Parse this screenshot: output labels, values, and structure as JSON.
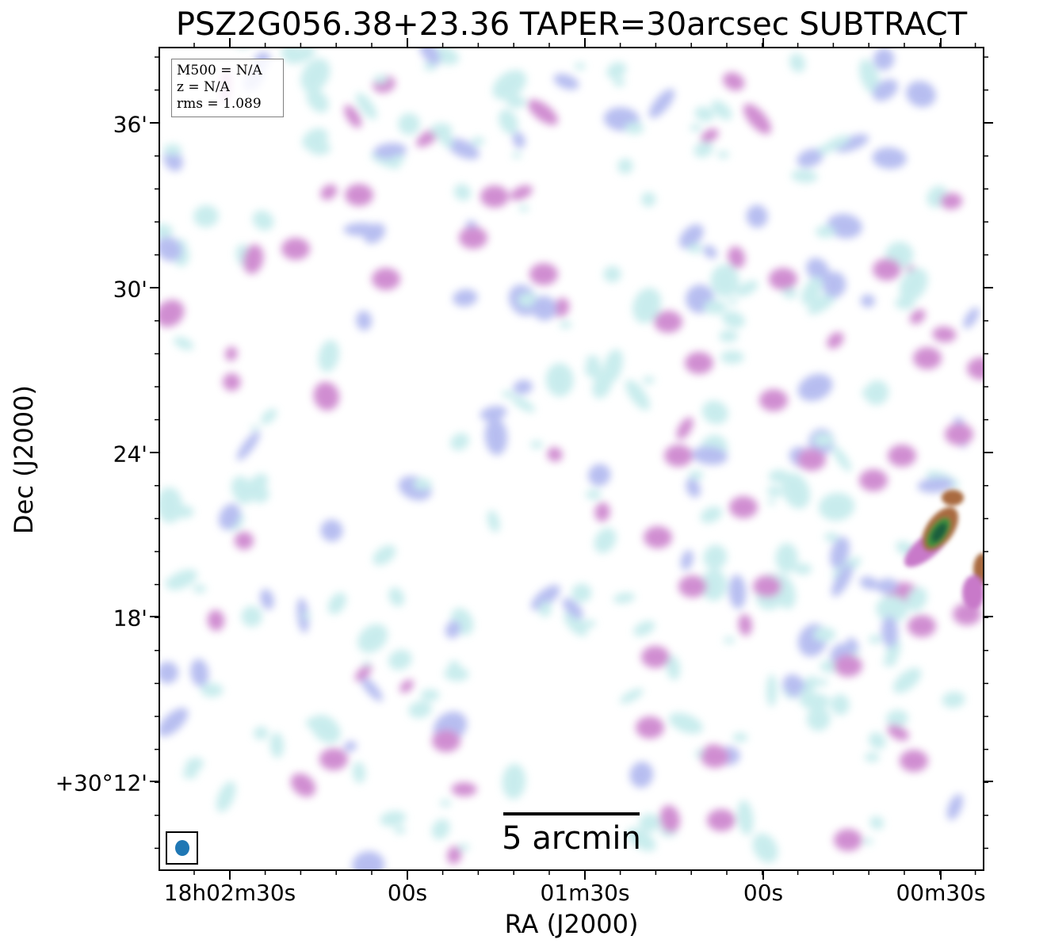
{
  "title": "PSZ2G056.38+23.36 TAPER=30arcsec SUBTRACT",
  "xaxis": {
    "label": "RA (J2000)",
    "ticks": [
      "18h02m30s",
      "00s",
      "01m30s",
      "00s",
      "00m30s"
    ]
  },
  "yaxis": {
    "label": "Dec (J2000)",
    "ticks": [
      "36'",
      "30'",
      "24'",
      "18'",
      "+30°12'"
    ]
  },
  "info": {
    "mass": "M500 = N/A",
    "redshift": "z = N/A",
    "rms": "rms = 1.089"
  },
  "scalebar": {
    "label": "5 arcmin"
  },
  "colors": {
    "faint": "#bfe9ea",
    "low": "#aab2ee",
    "mid": "#c879c9",
    "bright": "#a96b40",
    "peak": "#1f5f3d",
    "beam": "#1f77b4"
  }
}
